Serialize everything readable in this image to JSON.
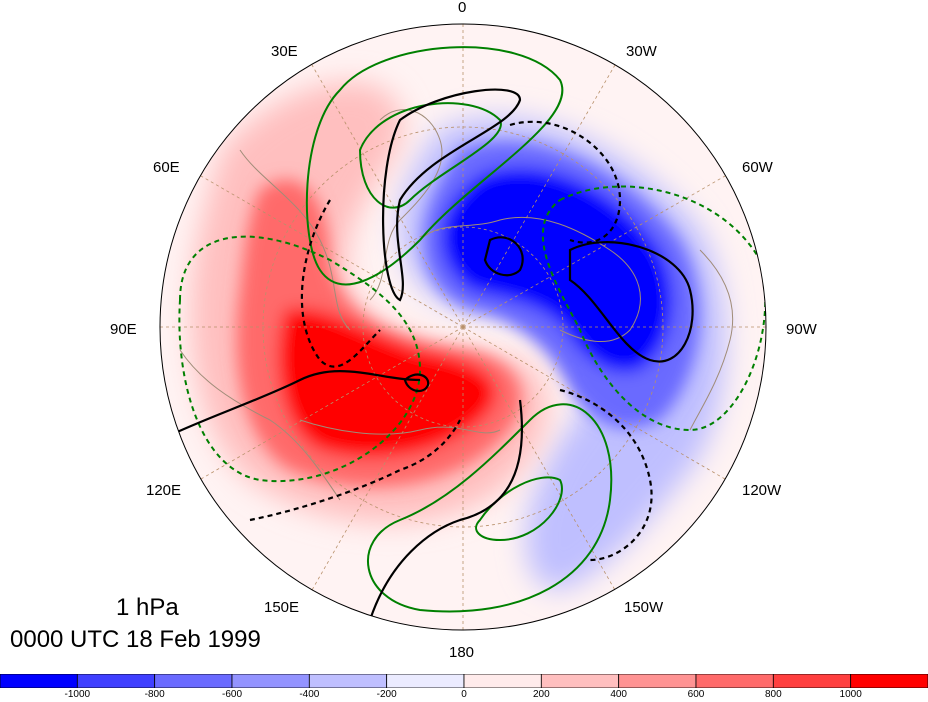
{
  "map": {
    "projection": "polar stereographic",
    "lon_labels": {
      "top": "0",
      "top_right": "30W",
      "upper_right": "60W",
      "right": "90W",
      "lower_right": "120W",
      "bottom_right": "150W",
      "bottom": "180",
      "bottom_left": "150E",
      "lower_left": "120E",
      "left": "90E",
      "upper_left": "60E",
      "top_left": "30E"
    }
  },
  "title": {
    "level": "1 hPa",
    "time": "0000 UTC 18 Feb 1999"
  },
  "colorbar": {
    "colors": [
      "#0000ff",
      "#3f3fff",
      "#6a6aff",
      "#9393ff",
      "#bfbfff",
      "#ebebff",
      "#ffebeb",
      "#ffbfbf",
      "#ff9393",
      "#ff6a6a",
      "#ff3f3f",
      "#ff0000"
    ],
    "ticks": [
      "-1000",
      "-800",
      "-600",
      "-400",
      "-200",
      "0",
      "200",
      "400",
      "600",
      "800",
      "1000"
    ]
  },
  "contours": {
    "black_solid": "#000000",
    "black_dashed": "#000000",
    "green_solid": "#008000",
    "green_dashed": "#008000"
  }
}
